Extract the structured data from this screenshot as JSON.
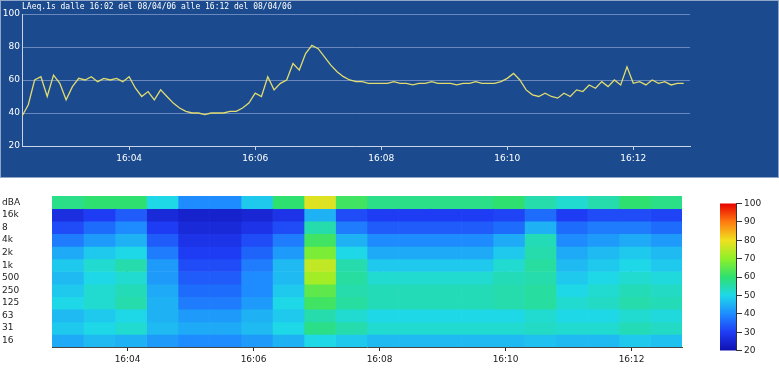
{
  "chart_data": [
    {
      "type": "line",
      "title": "LAeq.1s dalle 16:02 del 08/04/06 alle 16:12 del 08/04/06",
      "x": [
        2.3,
        2.4,
        2.5,
        2.6,
        2.7,
        2.8,
        2.9,
        3.0,
        3.1,
        3.2,
        3.3,
        3.4,
        3.5,
        3.6,
        3.7,
        3.8,
        3.9,
        4.0,
        4.1,
        4.2,
        4.3,
        4.4,
        4.5,
        4.6,
        4.7,
        4.8,
        4.9,
        5.0,
        5.1,
        5.2,
        5.3,
        5.4,
        5.5,
        5.6,
        5.7,
        5.8,
        5.9,
        6.0,
        6.1,
        6.2,
        6.3,
        6.4,
        6.5,
        6.6,
        6.7,
        6.8,
        6.9,
        7.0,
        7.1,
        7.2,
        7.3,
        7.4,
        7.5,
        7.6,
        7.7,
        7.8,
        7.9,
        8.0,
        8.1,
        8.2,
        8.3,
        8.4,
        8.5,
        8.6,
        8.7,
        8.8,
        8.9,
        9.0,
        9.1,
        9.2,
        9.3,
        9.4,
        9.5,
        9.6,
        9.7,
        9.8,
        9.9,
        10.0,
        10.1,
        10.2,
        10.3,
        10.4,
        10.5,
        10.6,
        10.7,
        10.8,
        10.9,
        11.0,
        11.1,
        11.2,
        11.3,
        11.4,
        11.5,
        11.6,
        11.7,
        11.8,
        11.9,
        12.0,
        12.1,
        12.2,
        12.3,
        12.4,
        12.5,
        12.6,
        12.7,
        12.8
      ],
      "values": [
        38,
        45,
        60,
        62,
        50,
        63,
        58,
        48,
        56,
        61,
        60,
        62,
        59,
        61,
        60,
        61,
        59,
        62,
        55,
        50,
        53,
        48,
        54,
        50,
        46,
        43,
        41,
        40,
        40,
        39,
        40,
        40,
        40,
        41,
        41,
        43,
        46,
        52,
        50,
        62,
        54,
        58,
        60,
        70,
        66,
        76,
        81,
        79,
        74,
        69,
        65,
        62,
        60,
        59,
        59,
        58,
        58,
        58,
        58,
        59,
        58,
        58,
        57,
        58,
        58,
        59,
        58,
        58,
        58,
        57,
        58,
        58,
        59,
        58,
        58,
        58,
        59,
        61,
        64,
        60,
        54,
        51,
        50,
        52,
        50,
        49,
        52,
        50,
        54,
        53,
        57,
        55,
        59,
        56,
        60,
        57,
        68,
        58,
        59,
        57,
        60,
        58,
        59,
        57,
        58,
        58
      ],
      "color": "#e0dc70",
      "xlim": [
        2.3,
        12.9
      ],
      "xticks": [
        {
          "value": 4,
          "label": "16:04"
        },
        {
          "value": 6,
          "label": "16:06"
        },
        {
          "value": 8,
          "label": "16:08"
        },
        {
          "value": 10,
          "label": "16:10"
        },
        {
          "value": 12,
          "label": "16:12"
        }
      ],
      "ylim": [
        20,
        100
      ],
      "yticks": [
        20,
        40,
        60,
        80,
        100
      ],
      "grid": true
    },
    {
      "type": "heatmap",
      "x": [
        2.8,
        3.3,
        3.8,
        4.3,
        4.8,
        5.3,
        5.8,
        6.3,
        6.8,
        7.3,
        7.8,
        8.3,
        8.8,
        9.3,
        9.8,
        10.3,
        10.8,
        11.3,
        11.8,
        12.3
      ],
      "categories": [
        "16",
        "31",
        "63",
        "125",
        "250",
        "500",
        "1k",
        "2k",
        "4k",
        "8",
        "16k"
      ],
      "cells": [
        [
          44,
          46,
          45,
          42,
          40,
          40,
          42,
          45,
          50,
          48,
          46,
          46,
          46,
          46,
          46,
          47,
          46,
          46,
          48,
          47
        ],
        [
          48,
          50,
          52,
          46,
          44,
          44,
          46,
          50,
          58,
          55,
          52,
          52,
          52,
          52,
          52,
          53,
          52,
          52,
          54,
          53
        ],
        [
          46,
          48,
          50,
          45,
          42,
          42,
          45,
          48,
          55,
          52,
          50,
          50,
          50,
          50,
          50,
          52,
          50,
          50,
          52,
          51
        ],
        [
          50,
          52,
          55,
          45,
          38,
          38,
          42,
          50,
          62,
          56,
          54,
          54,
          54,
          54,
          55,
          56,
          52,
          53,
          55,
          54
        ],
        [
          48,
          52,
          54,
          44,
          36,
          36,
          40,
          48,
          65,
          55,
          54,
          54,
          54,
          54,
          55,
          56,
          50,
          52,
          54,
          53
        ],
        [
          46,
          50,
          52,
          42,
          34,
          34,
          40,
          46,
          72,
          56,
          52,
          52,
          52,
          52,
          54,
          55,
          48,
          50,
          52,
          51
        ],
        [
          48,
          52,
          55,
          42,
          32,
          32,
          38,
          46,
          75,
          55,
          48,
          48,
          48,
          48,
          52,
          56,
          46,
          48,
          50,
          48
        ],
        [
          44,
          48,
          50,
          38,
          30,
          30,
          35,
          42,
          68,
          50,
          44,
          44,
          44,
          44,
          48,
          55,
          44,
          46,
          48,
          46
        ],
        [
          38,
          42,
          45,
          34,
          28,
          28,
          32,
          38,
          62,
          45,
          40,
          40,
          40,
          40,
          44,
          54,
          40,
          42,
          44,
          42
        ],
        [
          32,
          36,
          40,
          30,
          26,
          26,
          28,
          32,
          55,
          38,
          34,
          34,
          34,
          34,
          36,
          45,
          36,
          38,
          38,
          36
        ],
        [
          27,
          30,
          34,
          26,
          24,
          24,
          25,
          28,
          45,
          32,
          30,
          30,
          30,
          30,
          31,
          36,
          30,
          32,
          32,
          31
        ]
      ],
      "strip_label": "dBA",
      "strip": [
        58,
        60,
        60,
        50,
        40,
        40,
        48,
        60,
        78,
        62,
        58,
        58,
        58,
        58,
        60,
        55,
        52,
        55,
        60,
        58
      ],
      "xlim": [
        2.8,
        12.8
      ],
      "xticks": [
        {
          "value": 4,
          "label": "16:04"
        },
        {
          "value": 6,
          "label": "16:06"
        },
        {
          "value": 8,
          "label": "16:08"
        },
        {
          "value": 10,
          "label": "16:10"
        },
        {
          "value": 12,
          "label": "16:12"
        }
      ],
      "grid": true,
      "colorbar": {
        "range": [
          20,
          100
        ],
        "ticks": [
          20,
          30,
          40,
          50,
          60,
          70,
          80,
          90,
          100
        ]
      }
    }
  ]
}
